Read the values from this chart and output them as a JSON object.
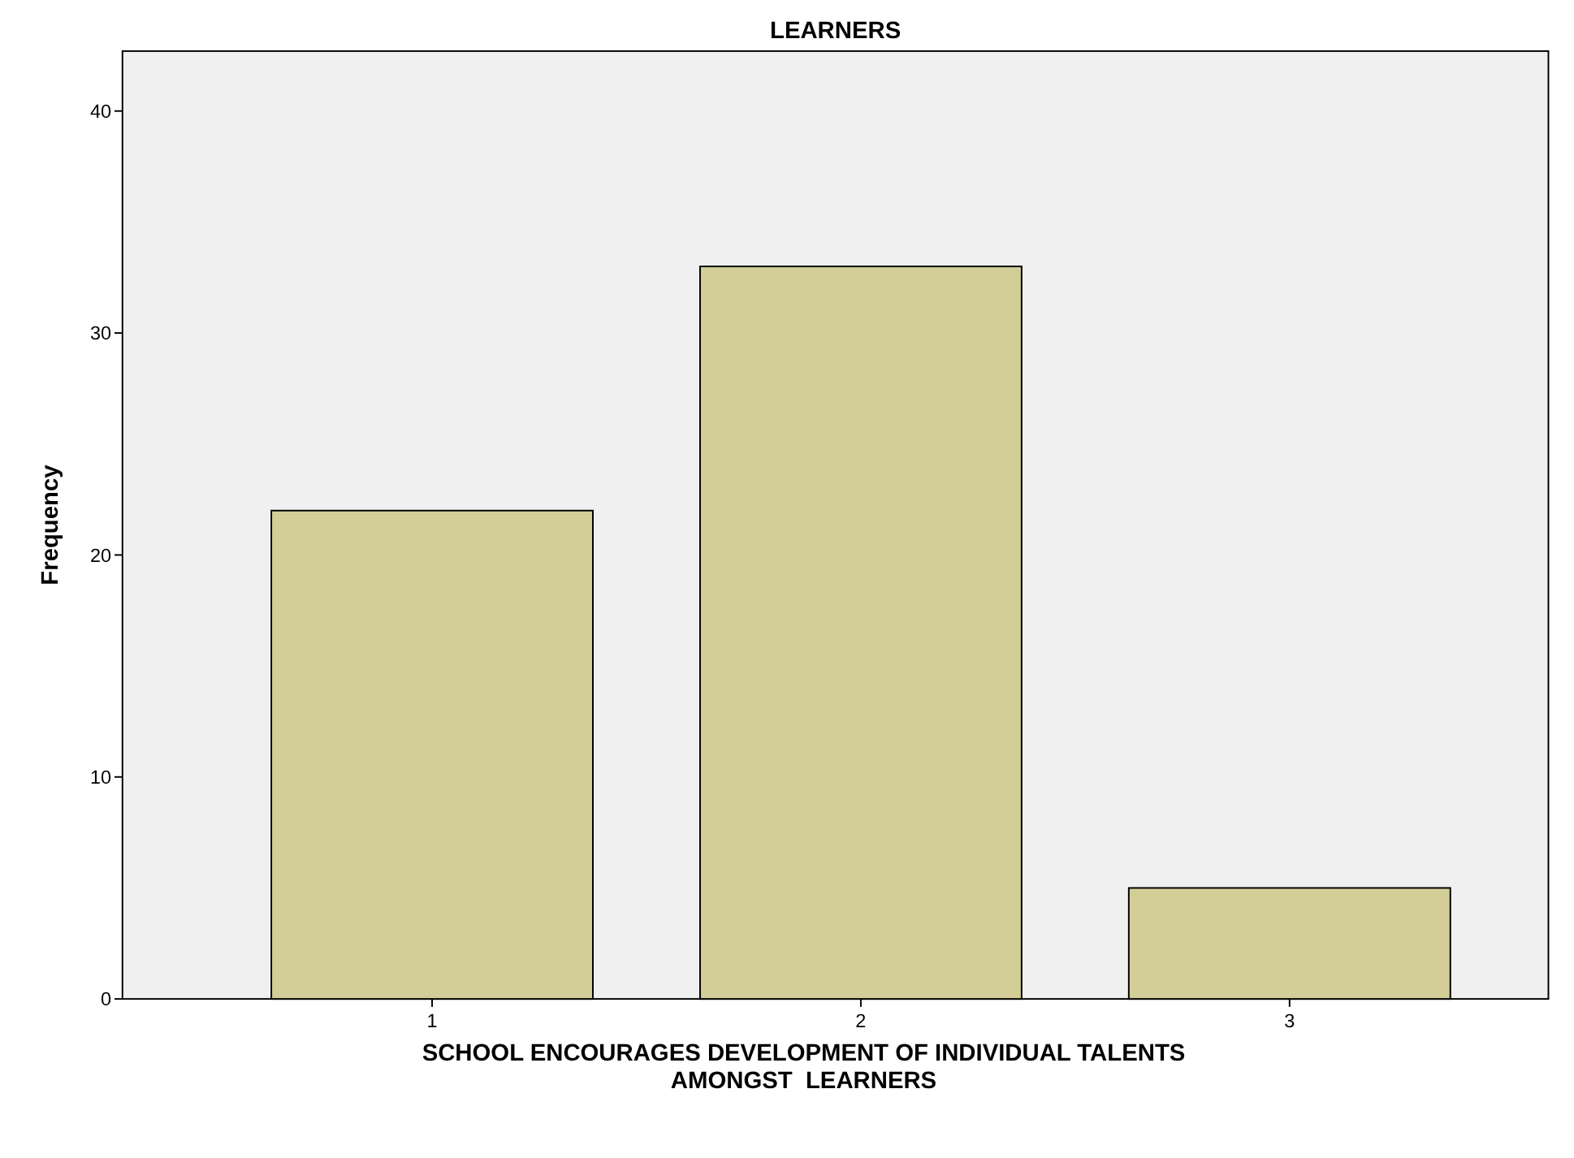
{
  "chart_data": {
    "type": "bar",
    "title": "LEARNERS",
    "xlabel": "SCHOOL ENCOURAGES DEVELOPMENT OF INDIVIDUAL TALENTS\nAMONGST  LEARNERS",
    "ylabel": "Frequency",
    "categories": [
      "1",
      "2",
      "3"
    ],
    "values": [
      22,
      33,
      5
    ],
    "color": "#d3ce97",
    "ylim": [
      0,
      42.7
    ],
    "yticks": [
      0,
      10,
      20,
      30,
      40
    ],
    "grid": false
  }
}
